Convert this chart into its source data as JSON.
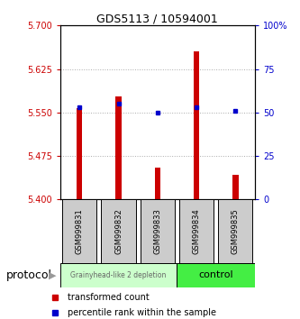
{
  "title": "GDS5113 / 10594001",
  "samples": [
    "GSM999831",
    "GSM999832",
    "GSM999833",
    "GSM999834",
    "GSM999835"
  ],
  "bar_values": [
    5.558,
    5.578,
    5.455,
    5.655,
    5.442
  ],
  "percentile_values": [
    53,
    55,
    50,
    53,
    51
  ],
  "bar_color": "#cc0000",
  "percentile_color": "#0000cc",
  "ylim_left": [
    5.4,
    5.7
  ],
  "yticks_left": [
    5.4,
    5.475,
    5.55,
    5.625,
    5.7
  ],
  "ylim_right": [
    0,
    100
  ],
  "yticks_right": [
    0,
    25,
    50,
    75,
    100
  ],
  "baseline": 5.4,
  "group1_label": "Grainyhead-like 2 depletion",
  "group2_label": "control",
  "group1_indices": [
    0,
    1,
    2
  ],
  "group2_indices": [
    3,
    4
  ],
  "group1_color": "#ccffcc",
  "group2_color": "#44ee44",
  "protocol_label": "protocol",
  "legend1": "transformed count",
  "legend2": "percentile rank within the sample",
  "bar_width": 0.15,
  "grid_color": "#aaaaaa",
  "background_color": "#ffffff",
  "plot_bg": "#ffffff",
  "tick_label_color_left": "#cc0000",
  "tick_label_color_right": "#0000cc",
  "sample_box_color": "#cccccc",
  "title_fontsize": 9,
  "tick_fontsize": 7,
  "legend_fontsize": 7,
  "sample_fontsize": 6,
  "protocol_fontsize": 9,
  "group1_text_color": "#666666",
  "group2_text_color": "#000000"
}
